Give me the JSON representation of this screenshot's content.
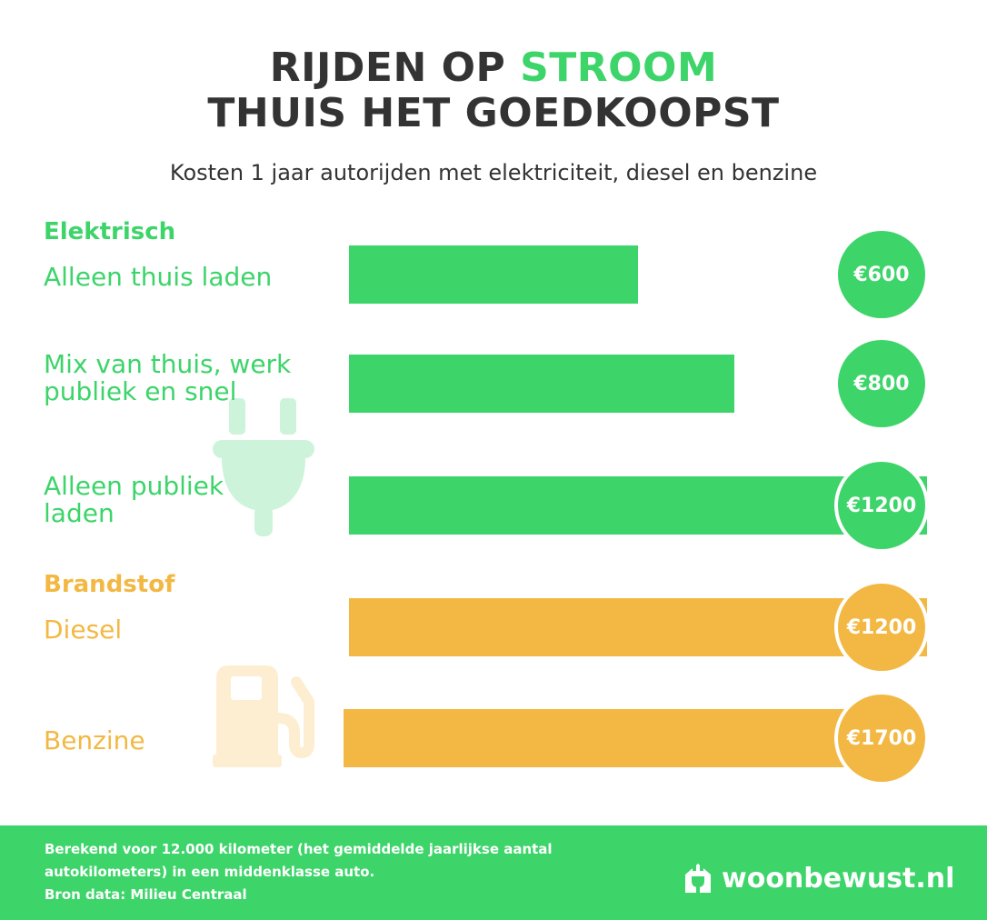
{
  "header": {
    "title_line1_prefix": "RIJDEN OP ",
    "title_line1_accent": "STROOM",
    "title_line2": "THUIS HET GOEDKOOPST",
    "subtitle": "Kosten 1 jaar autorijden met elektriciteit, diesel en benzine"
  },
  "colors": {
    "electric": "#3dd46a",
    "fuel": "#f3b843",
    "text": "#333333"
  },
  "chart_data": {
    "type": "bar",
    "orientation": "horizontal",
    "groups": [
      {
        "name": "Elektrisch",
        "color": "#3dd46a",
        "items": [
          {
            "label": "Alleen thuis laden",
            "value": 600,
            "value_label": "€600"
          },
          {
            "label": "Mix van thuis, werk publiek en snel",
            "value": 800,
            "value_label": "€800"
          },
          {
            "label": "Alleen publiek laden",
            "value": 1200,
            "value_label": "€1200"
          }
        ]
      },
      {
        "name": "Brandstof",
        "color": "#f3b843",
        "items": [
          {
            "label": "Diesel",
            "value": 1200,
            "value_label": "€1200"
          },
          {
            "label": "Benzine",
            "value": 1700,
            "value_label": "€1700"
          }
        ]
      }
    ],
    "currency": "€"
  },
  "icons": {
    "electric": "plug-icon",
    "fuel": "fuel-pump-icon",
    "brand": "house-plug-logo-icon"
  },
  "footer": {
    "note_line1": "Berekend voor 12.000 kilometer (het gemiddelde jaarlijkse aantal",
    "note_line2": "autokilometers) in een middenklasse auto.",
    "source": "Bron data: Milieu Centraal",
    "brand": "woonbewust.nl"
  }
}
